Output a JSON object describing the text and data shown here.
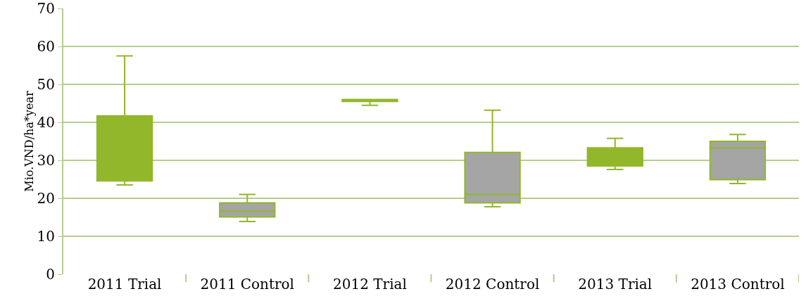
{
  "chart_data": {
    "type": "box",
    "ylabel": "Mio.VND/ha*year",
    "categories": [
      "2011 Trial",
      "2011 Control",
      "2012 Trial",
      "2012 Control",
      "2013 Trial",
      "2013 Control"
    ],
    "boxes": [
      {
        "low": 23.5,
        "q1": 24.6,
        "median": 25.3,
        "q3": 41.7,
        "high": 57.5
      },
      {
        "low": 13.9,
        "q1": 15.1,
        "median": 16.6,
        "q3": 18.8,
        "high": 21.0
      },
      {
        "low": 44.5,
        "q1": 45.5,
        "median": 45.8,
        "q3": 46.0,
        "high": 46.0
      },
      {
        "low": 17.8,
        "q1": 18.8,
        "median": 21.0,
        "q3": 32.1,
        "high": 43.2
      },
      {
        "low": 27.6,
        "q1": 28.5,
        "median": 30.8,
        "q3": 33.3,
        "high": 35.8
      },
      {
        "low": 23.9,
        "q1": 24.9,
        "median": 33.3,
        "q3": 35.0,
        "high": 36.8
      }
    ],
    "colors": [
      "#92b72a",
      "#a5a5a5",
      "#92b72a",
      "#a5a5a5",
      "#92b72a",
      "#a5a5a5"
    ],
    "color": "#92b72a",
    "ylim": [
      0,
      70
    ],
    "yticks": [
      0,
      10,
      20,
      30,
      40,
      50,
      60,
      70
    ],
    "grid": "y",
    "legend": false
  }
}
